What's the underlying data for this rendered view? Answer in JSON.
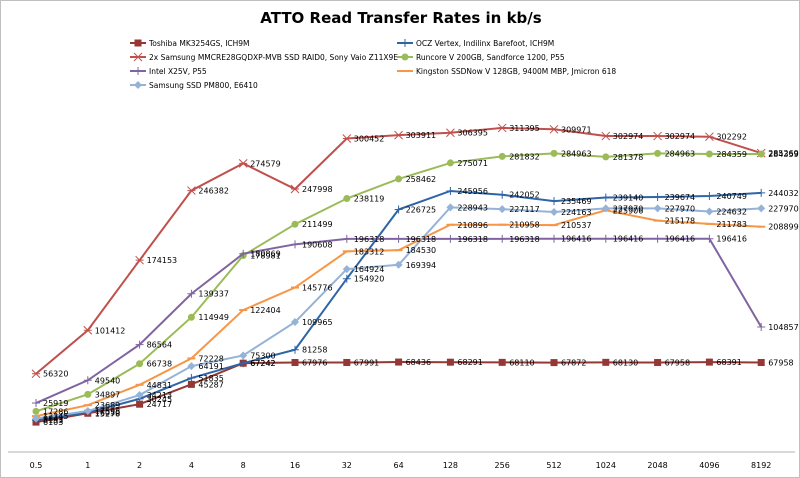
{
  "chart_data": {
    "type": "line",
    "title": "ATTO Read Transfer Rates in kb/s",
    "xlabel": "",
    "ylabel": "",
    "x": [
      "0.5",
      "1",
      "2",
      "4",
      "8",
      "16",
      "32",
      "64",
      "128",
      "256",
      "512",
      "1024",
      "2048",
      "4096",
      "8192"
    ],
    "ylim": [
      0,
      330000
    ],
    "grid": false,
    "legend_position": "top",
    "series": [
      {
        "name": "Toshiba MK3254GS, ICH9M",
        "color": "#953735",
        "marker": "square",
        "values": [
          6103,
          15278,
          24717,
          45287,
          67242,
          67976,
          67991,
          68436,
          68291,
          68110,
          67872,
          68130,
          67958,
          68391,
          67958
        ]
      },
      {
        "name": "OCZ Vertex, Indilinx Barefoot, ICH9M",
        "color": "#2e65a8",
        "marker": "plus",
        "values": [
          8193,
          16050,
          30245,
          51835,
          67242,
          81258,
          154920,
          226725,
          245956,
          242052,
          235469,
          239140,
          239674,
          240749,
          244032
        ]
      },
      {
        "name": "2x Samsung MMCRE28GQDXP-MVB  SSD RAID0, Sony Vaio Z11X9E",
        "color": "#c0504d",
        "marker": "asterisk",
        "values": [
          56320,
          101412,
          174153,
          246382,
          274579,
          247998,
          300452,
          303911,
          306395,
          311395,
          309971,
          302974,
          302974,
          302292,
          285269
        ]
      },
      {
        "name": "Runcore V 200GB, Sandforce 1200, P55",
        "color": "#9bbb59",
        "marker": "circle",
        "values": [
          17286,
          34897,
          66738,
          114949,
          178981,
          211499,
          238119,
          258462,
          275071,
          281832,
          284963,
          281378,
          284963,
          284359,
          284359
        ]
      },
      {
        "name": "Intel X25V, P55",
        "color": "#8064a2",
        "marker": "plus",
        "values": [
          25919,
          49540,
          86564,
          139337,
          180869,
          190608,
          196318,
          196318,
          196318,
          196318,
          196416,
          196416,
          196416,
          196416,
          104857
        ]
      },
      {
        "name": "Kingston SSDNow  V 128GB, 9400M MBP, Jmicron 618",
        "color": "#f79646",
        "marker": "dash",
        "values": [
          12345,
          23689,
          44831,
          72228,
          122404,
          145776,
          183312,
          184530,
          210896,
          210958,
          210537,
          225906,
          215178,
          211783,
          208899
        ]
      },
      {
        "name": "Samsung SSD PM800, E6410",
        "color": "#95b3d7",
        "marker": "diamond",
        "values": [
          9843,
          17598,
          34213,
          64191,
          75300,
          109965,
          164924,
          169394,
          228943,
          227117,
          224163,
          227970,
          227970,
          224632,
          227970
        ]
      }
    ]
  }
}
